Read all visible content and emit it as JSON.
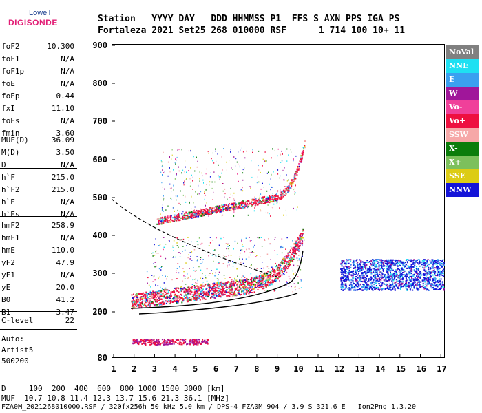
{
  "logo": {
    "line1": "Lowell",
    "line2": "DIGISONDE"
  },
  "header": {
    "line1": "Station   YYYY DAY   DDD HHMMSS P1  FFS S AXN PPS IGA PS",
    "line2": "Fortaleza 2021 Set25 268 010000 RSF      1 714 100 10+ 11"
  },
  "params_group1": [
    {
      "label": "foF2",
      "value": "10.300"
    },
    {
      "label": "foF1",
      "value": "N/A"
    },
    {
      "label": "foF1p",
      "value": "N/A"
    },
    {
      "label": "foE",
      "value": "N/A"
    },
    {
      "label": "foEp",
      "value": "0.44"
    },
    {
      "label": "fxI",
      "value": "11.10"
    },
    {
      "label": "foEs",
      "value": "N/A"
    },
    {
      "label": "fmin",
      "value": "3.60"
    }
  ],
  "params_group2": [
    {
      "label": "MUF(D)",
      "value": "36.09"
    },
    {
      "label": "M(D)",
      "value": "3.50"
    },
    {
      "label": "D",
      "value": "N/A"
    }
  ],
  "params_group3": [
    {
      "label": "h`F",
      "value": "215.0"
    },
    {
      "label": "h`F2",
      "value": "215.0"
    },
    {
      "label": "h`E",
      "value": "N/A"
    },
    {
      "label": "h`Es",
      "value": "N/A"
    }
  ],
  "params_group4": [
    {
      "label": "hmF2",
      "value": "258.9"
    },
    {
      "label": "hmF1",
      "value": "N/A"
    },
    {
      "label": "hmE",
      "value": "110.0"
    },
    {
      "label": "yF2",
      "value": "47.9"
    },
    {
      "label": "yF1",
      "value": "N/A"
    },
    {
      "label": "yE",
      "value": "20.0"
    },
    {
      "label": "B0",
      "value": "41.2"
    },
    {
      "label": "B1",
      "value": "3.47"
    }
  ],
  "params_group5": [
    {
      "label": "C-level",
      "value": "22"
    }
  ],
  "auto": {
    "line1": "Auto:",
    "line2": "Artist5",
    "line3": "500200"
  },
  "legend": [
    {
      "label": "NoVal",
      "color": "#808080"
    },
    {
      "label": "NNE",
      "color": "#1ee0f2"
    },
    {
      "label": "E",
      "color": "#3aa0f0"
    },
    {
      "label": "W",
      "color": "#a0169a"
    },
    {
      "label": "Vo-",
      "color": "#f0409a"
    },
    {
      "label": "Vo+",
      "color": "#ee1040"
    },
    {
      "label": "SSW",
      "color": "#f6a8a8"
    },
    {
      "label": "X-",
      "color": "#0b7d0b"
    },
    {
      "label": "X+",
      "color": "#7cc05c"
    },
    {
      "label": "SSE",
      "color": "#dccc14"
    },
    {
      "label": "NNW",
      "color": "#1414d8"
    }
  ],
  "axes": {
    "x_ticks": [
      "1",
      "2",
      "3",
      "4",
      "5",
      "6",
      "7",
      "8",
      "9",
      "10",
      "11",
      "12",
      "13",
      "14",
      "15",
      "16",
      "17"
    ],
    "y_ticks": [
      "80",
      "200",
      "300",
      "400",
      "500",
      "600",
      "700",
      "800",
      "900"
    ]
  },
  "bottom": {
    "line1": "D     100  200  400  600  800 1000 1500 3000 [km]",
    "line2": "MUF  10.7 10.8 11.4 12.3 13.7 15.6 21.3 36.1 [MHz]",
    "line3": "FZA0M_2021268010000.RSF / 320fx256h 50 kHz 5.0 km / DPS-4 FZA0M 904 / 3.9 S 321.6 E   Ion2Png 1.3.20"
  }
}
